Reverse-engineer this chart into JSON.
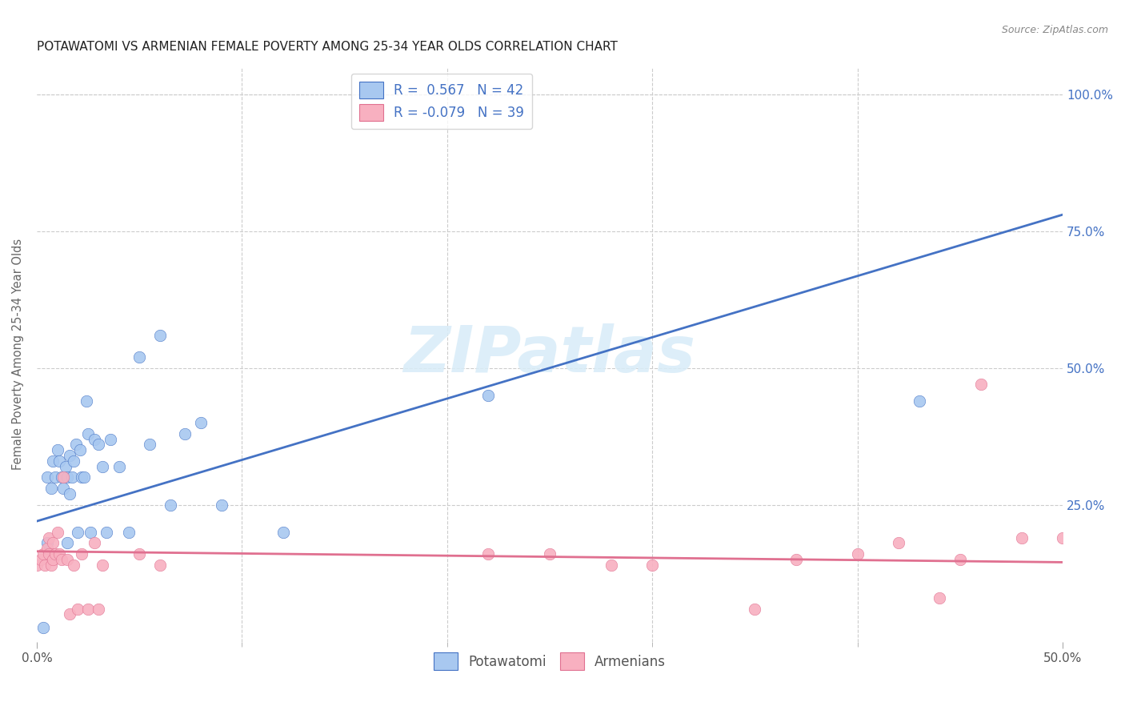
{
  "title": "POTAWATOMI VS ARMENIAN FEMALE POVERTY AMONG 25-34 YEAR OLDS CORRELATION CHART",
  "source": "Source: ZipAtlas.com",
  "ylabel": "Female Poverty Among 25-34 Year Olds",
  "xlim": [
    0.0,
    0.5
  ],
  "ylim": [
    0.0,
    1.05
  ],
  "xtick_labels_edge": [
    "0.0%",
    "50.0%"
  ],
  "xtick_values_edge": [
    0.0,
    0.5
  ],
  "xtick_minor_values": [
    0.1,
    0.2,
    0.3,
    0.4
  ],
  "ytick_labels": [
    "25.0%",
    "50.0%",
    "75.0%",
    "100.0%"
  ],
  "ytick_values": [
    0.25,
    0.5,
    0.75,
    1.0
  ],
  "potawatomi_color": "#A8C8F0",
  "armenian_color": "#F8B0C0",
  "line_potawatomi_color": "#4472C4",
  "line_armenian_color": "#E07090",
  "R_potawatomi": 0.567,
  "N_potawatomi": 42,
  "R_armenian": -0.079,
  "N_armenian": 39,
  "watermark": "ZIPatlas",
  "pot_line_x0": 0.0,
  "pot_line_y0": 0.22,
  "pot_line_x1": 0.5,
  "pot_line_y1": 0.78,
  "arm_line_x0": 0.0,
  "arm_line_y0": 0.165,
  "arm_line_x1": 0.5,
  "arm_line_y1": 0.145,
  "potawatomi_x": [
    0.003,
    0.005,
    0.007,
    0.008,
    0.009,
    0.01,
    0.011,
    0.012,
    0.013,
    0.014,
    0.015,
    0.015,
    0.016,
    0.016,
    0.017,
    0.018,
    0.019,
    0.02,
    0.021,
    0.022,
    0.023,
    0.024,
    0.025,
    0.026,
    0.028,
    0.03,
    0.032,
    0.034,
    0.036,
    0.04,
    0.045,
    0.05,
    0.055,
    0.06,
    0.065,
    0.072,
    0.08,
    0.09,
    0.005,
    0.12,
    0.22,
    0.43
  ],
  "potawatomi_y": [
    0.025,
    0.3,
    0.28,
    0.33,
    0.3,
    0.35,
    0.33,
    0.3,
    0.28,
    0.32,
    0.3,
    0.18,
    0.34,
    0.27,
    0.3,
    0.33,
    0.36,
    0.2,
    0.35,
    0.3,
    0.3,
    0.44,
    0.38,
    0.2,
    0.37,
    0.36,
    0.32,
    0.2,
    0.37,
    0.32,
    0.2,
    0.52,
    0.36,
    0.56,
    0.25,
    0.38,
    0.4,
    0.25,
    0.18,
    0.2,
    0.45,
    0.44
  ],
  "armenian_x": [
    0.0,
    0.002,
    0.003,
    0.004,
    0.005,
    0.006,
    0.006,
    0.007,
    0.008,
    0.008,
    0.009,
    0.01,
    0.011,
    0.012,
    0.013,
    0.015,
    0.016,
    0.018,
    0.02,
    0.022,
    0.025,
    0.028,
    0.03,
    0.032,
    0.05,
    0.06,
    0.22,
    0.25,
    0.28,
    0.3,
    0.35,
    0.37,
    0.4,
    0.42,
    0.44,
    0.45,
    0.46,
    0.48,
    0.5
  ],
  "armenian_y": [
    0.14,
    0.15,
    0.16,
    0.14,
    0.17,
    0.19,
    0.16,
    0.14,
    0.18,
    0.15,
    0.16,
    0.2,
    0.16,
    0.15,
    0.3,
    0.15,
    0.05,
    0.14,
    0.06,
    0.16,
    0.06,
    0.18,
    0.06,
    0.14,
    0.16,
    0.14,
    0.16,
    0.16,
    0.14,
    0.14,
    0.06,
    0.15,
    0.16,
    0.18,
    0.08,
    0.15,
    0.47,
    0.19,
    0.19
  ],
  "background_color": "#FFFFFF",
  "grid_color": "#CCCCCC"
}
